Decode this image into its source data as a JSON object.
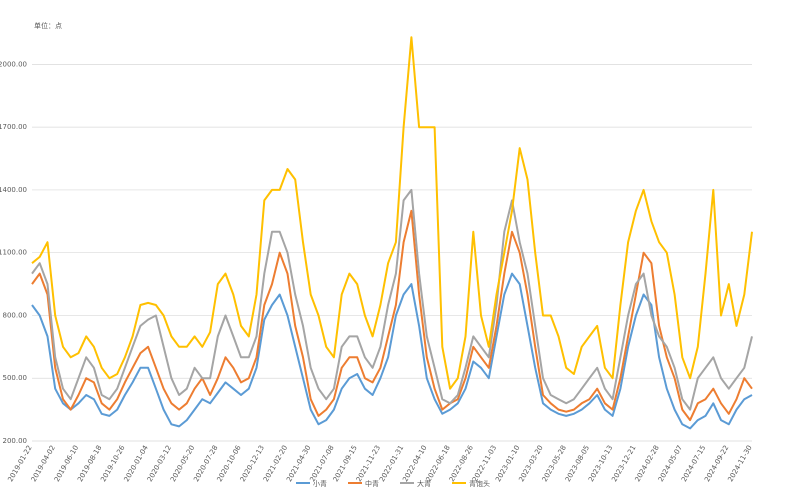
{
  "chart_data": {
    "type": "line",
    "unit_label": "单位：点",
    "categories": [
      "2019-01-22",
      null,
      null,
      "2019-04-02",
      null,
      null,
      "2019-06-10",
      null,
      null,
      "2019-08-18",
      null,
      null,
      "2019-10-26",
      null,
      null,
      "2020-01-04",
      null,
      null,
      "2020-03-12",
      null,
      null,
      "2020-05-20",
      null,
      null,
      "2020-07-28",
      null,
      null,
      "2020-10-06",
      null,
      null,
      "2020-12-13",
      null,
      null,
      "2021-02-20",
      null,
      null,
      "2021-04-30",
      null,
      null,
      "2021-07-08",
      null,
      null,
      "2021-09-15",
      null,
      null,
      "2021-11-23",
      null,
      null,
      "2022-01-31",
      null,
      null,
      "2022-04-10",
      null,
      null,
      "2022-06-18",
      null,
      null,
      "2022-08-26",
      null,
      null,
      "2022-11-03",
      null,
      null,
      "2023-01-10",
      null,
      null,
      "2023-03-20",
      null,
      null,
      "2023-05-28",
      null,
      null,
      "2023-08-05",
      null,
      null,
      "2023-10-13",
      null,
      null,
      "2023-12-21",
      null,
      null,
      "2024-02-28",
      null,
      null,
      "2024-05-07",
      null,
      null,
      "2024-07-15",
      null,
      null,
      "2024-09-22",
      null,
      null,
      "2024-11-30"
    ],
    "series": [
      {
        "name": "小青",
        "color": "#5b9bd5",
        "values": [
          850,
          800,
          700,
          450,
          380,
          350,
          380,
          420,
          400,
          330,
          320,
          350,
          420,
          480,
          550,
          550,
          450,
          350,
          280,
          270,
          300,
          350,
          400,
          380,
          430,
          480,
          450,
          420,
          450,
          550,
          780,
          850,
          900,
          800,
          650,
          500,
          350,
          280,
          300,
          350,
          450,
          500,
          520,
          450,
          420,
          500,
          600,
          800,
          900,
          950,
          750,
          500,
          400,
          330,
          350,
          380,
          450,
          580,
          550,
          500,
          700,
          900,
          1000,
          950,
          750,
          550,
          380,
          350,
          330,
          320,
          330,
          350,
          380,
          420,
          350,
          320,
          450,
          650,
          800,
          900,
          850,
          600,
          450,
          350,
          280,
          260,
          300,
          320,
          380,
          300,
          280,
          350,
          400,
          420
        ]
      },
      {
        "name": "中青",
        "color": "#ed7d31",
        "values": [
          950,
          1000,
          900,
          550,
          400,
          350,
          420,
          500,
          480,
          380,
          350,
          400,
          480,
          550,
          620,
          650,
          550,
          450,
          380,
          350,
          380,
          450,
          500,
          420,
          500,
          600,
          550,
          480,
          500,
          600,
          850,
          950,
          1100,
          1000,
          750,
          600,
          400,
          320,
          350,
          400,
          550,
          600,
          600,
          500,
          480,
          550,
          700,
          850,
          1150,
          1300,
          900,
          600,
          450,
          350,
          380,
          400,
          500,
          650,
          600,
          550,
          750,
          1000,
          1200,
          1100,
          900,
          650,
          420,
          380,
          350,
          340,
          350,
          380,
          400,
          450,
          380,
          350,
          500,
          700,
          900,
          1100,
          1050,
          750,
          600,
          500,
          350,
          300,
          380,
          400,
          450,
          380,
          330,
          400,
          500,
          450
        ]
      },
      {
        "name": "大青",
        "color": "#a5a5a5",
        "values": [
          1000,
          1050,
          950,
          600,
          450,
          400,
          500,
          600,
          550,
          420,
          400,
          450,
          550,
          650,
          750,
          780,
          800,
          650,
          500,
          420,
          450,
          550,
          500,
          500,
          700,
          800,
          700,
          600,
          600,
          700,
          1000,
          1200,
          1200,
          1100,
          900,
          750,
          550,
          450,
          400,
          450,
          650,
          700,
          700,
          600,
          550,
          650,
          850,
          1000,
          1350,
          1400,
          1000,
          700,
          550,
          400,
          380,
          420,
          550,
          700,
          650,
          600,
          850,
          1200,
          1350,
          1150,
          1000,
          750,
          500,
          420,
          400,
          380,
          400,
          450,
          500,
          550,
          450,
          400,
          600,
          800,
          950,
          1000,
          800,
          700,
          650,
          550,
          400,
          350,
          500,
          550,
          600,
          500,
          450,
          500,
          550,
          700
        ]
      },
      {
        "name": "青饱头",
        "color": "#ffc000",
        "values": [
          1050,
          1080,
          1150,
          800,
          650,
          600,
          620,
          700,
          650,
          550,
          500,
          520,
          600,
          700,
          850,
          860,
          850,
          800,
          700,
          650,
          650,
          700,
          650,
          720,
          950,
          1000,
          900,
          750,
          700,
          900,
          1350,
          1400,
          1400,
          1500,
          1450,
          1150,
          900,
          800,
          650,
          600,
          900,
          1000,
          950,
          800,
          700,
          850,
          1050,
          1150,
          1700,
          2130,
          1700,
          1700,
          1700,
          650,
          450,
          500,
          700,
          1200,
          800,
          650,
          900,
          1100,
          1300,
          1600,
          1450,
          1100,
          800,
          800,
          700,
          550,
          520,
          650,
          700,
          750,
          550,
          500,
          850,
          1150,
          1300,
          1400,
          1250,
          1150,
          1100,
          900,
          600,
          500,
          650,
          1000,
          1400,
          800,
          950,
          750,
          900,
          1200
        ]
      }
    ],
    "ylim": [
      200,
      2150
    ],
    "yticks": [
      {
        "value": 200,
        "label": "200.00"
      },
      {
        "value": 500,
        "label": "500.00"
      },
      {
        "value": 800,
        "label": "800.00"
      },
      {
        "value": 1100,
        "label": "1100.00"
      },
      {
        "value": 1400,
        "label": "1400.00"
      },
      {
        "value": 1700,
        "label": "1700.00"
      },
      {
        "value": 2000,
        "label": "2000.00"
      }
    ],
    "grid": true
  }
}
